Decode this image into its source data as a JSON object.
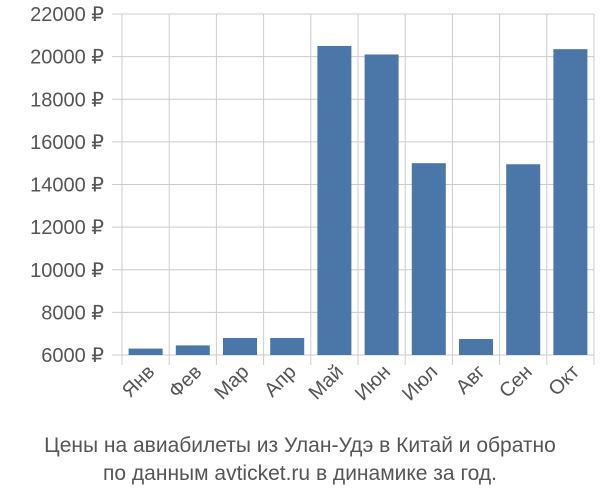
{
  "chart_data": {
    "type": "bar",
    "categories": [
      "Янв",
      "Фев",
      "Мар",
      "Апр",
      "Май",
      "Июн",
      "Июл",
      "Авг",
      "Сен",
      "Окт"
    ],
    "values": [
      6300,
      6450,
      6800,
      6800,
      20500,
      20100,
      15000,
      6750,
      14950,
      20350
    ],
    "ylim": [
      6000,
      22000
    ],
    "yticks": [
      6000,
      8000,
      10000,
      12000,
      14000,
      16000,
      18000,
      20000,
      22000
    ],
    "ytick_labels": [
      "6000 ₽",
      "8000 ₽",
      "10000 ₽",
      "12000 ₽",
      "14000 ₽",
      "16000 ₽",
      "18000 ₽",
      "20000 ₽",
      "22000 ₽"
    ],
    "grid": true,
    "colors": {
      "bar": "#4a76a8",
      "grid": "#cccccc",
      "text": "#555555"
    },
    "caption_line1": "Цены на авиабилеты из Улан-Удэ в Китай и обратно",
    "caption_line2": "по данным avticket.ru в динамике за год."
  }
}
